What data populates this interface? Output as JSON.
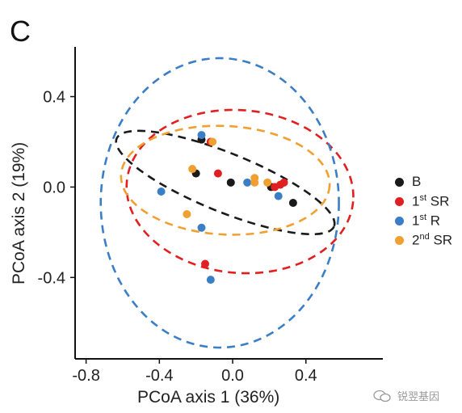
{
  "panel_letter": "C",
  "colors": {
    "B": "#1a1a1a",
    "1st SR": "#e02020",
    "1st R": "#3a7ec6",
    "2nd SR": "#f0a030"
  },
  "chart_data": {
    "type": "scatter",
    "title": "",
    "xlabel": "PCoA axis 1 (36%)",
    "ylabel": "PCoA axis 2 (19%)",
    "xlim": [
      -0.86,
      0.82
    ],
    "ylim": [
      -0.76,
      0.62
    ],
    "xticks": [
      -0.8,
      -0.4,
      0.0,
      0.4
    ],
    "xtick_labels": [
      "-0.8",
      "-0.4",
      "0.0",
      "0.4"
    ],
    "yticks": [
      -0.4,
      0.0,
      0.4
    ],
    "ytick_labels": [
      "-0.4",
      "0.0",
      "0.4"
    ],
    "grid": false,
    "legend_position": "right",
    "series": [
      {
        "name": "B",
        "label_base": "B",
        "label_sup": "",
        "label_suffix": "",
        "color": "#1a1a1a",
        "points": [
          [
            -0.17,
            0.21
          ],
          [
            -0.2,
            0.06
          ],
          [
            -0.01,
            0.02
          ],
          [
            0.21,
            0.0
          ],
          [
            0.33,
            -0.07
          ]
        ],
        "ellipse": {
          "cx": -0.04,
          "cy": 0.02,
          "a": 0.64,
          "b": 0.13,
          "angle_deg": -22
        }
      },
      {
        "name": "1st SR",
        "label_base": "1",
        "label_sup": "st",
        "label_suffix": " SR",
        "color": "#e02020",
        "points": [
          [
            -0.12,
            0.2
          ],
          [
            -0.08,
            0.06
          ],
          [
            0.23,
            0.0
          ],
          [
            0.26,
            0.01
          ],
          [
            0.28,
            0.02
          ],
          [
            -0.15,
            -0.34
          ]
        ],
        "ellipse": {
          "cx": 0.04,
          "cy": -0.02,
          "a": 0.62,
          "b": 0.36,
          "angle_deg": -5
        }
      },
      {
        "name": "1st R",
        "label_base": "1",
        "label_sup": "st",
        "label_suffix": " R",
        "color": "#3a7ec6",
        "points": [
          [
            -0.17,
            0.23
          ],
          [
            -0.39,
            -0.02
          ],
          [
            0.08,
            0.02
          ],
          [
            0.25,
            -0.04
          ],
          [
            -0.17,
            -0.18
          ],
          [
            -0.12,
            -0.41
          ]
        ],
        "ellipse": {
          "cx": -0.07,
          "cy": -0.07,
          "a": 0.65,
          "b": 0.64,
          "angle_deg": 0
        }
      },
      {
        "name": "2nd SR",
        "label_base": "2",
        "label_sup": "nd",
        "label_suffix": " SR",
        "color": "#f0a030",
        "points": [
          [
            -0.11,
            0.2
          ],
          [
            -0.22,
            0.08
          ],
          [
            0.12,
            0.04
          ],
          [
            0.12,
            0.02
          ],
          [
            0.19,
            0.02
          ],
          [
            -0.25,
            -0.12
          ]
        ],
        "ellipse": {
          "cx": -0.04,
          "cy": 0.03,
          "a": 0.57,
          "b": 0.24,
          "angle_deg": -3
        }
      }
    ]
  },
  "watermark": "锐翌基因"
}
